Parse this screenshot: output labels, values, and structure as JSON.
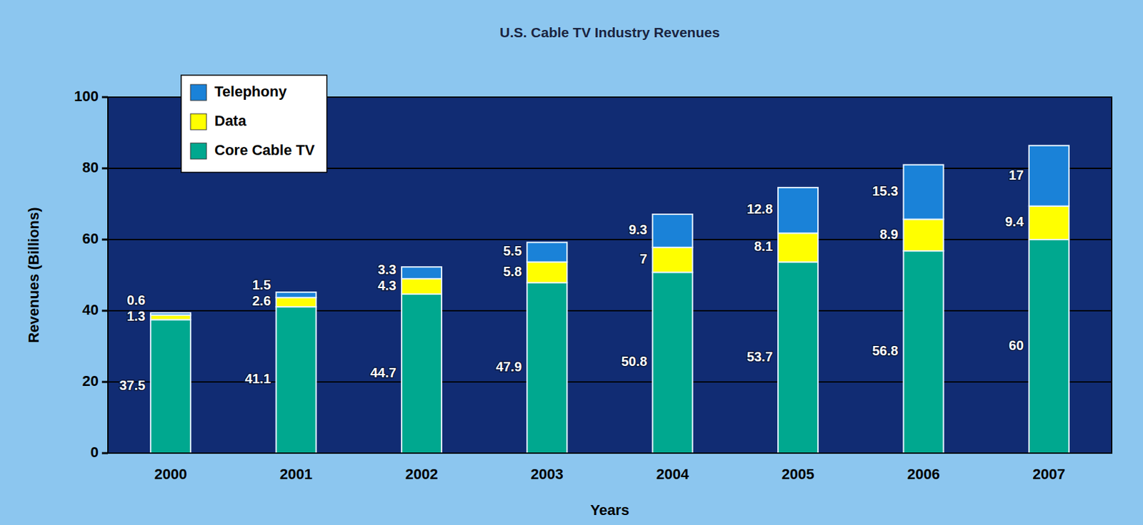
{
  "chart_data": {
    "type": "bar",
    "title": "U.S. Cable TV Industry Revenues",
    "x_label": "Years",
    "y_label": "Revenues (Billions)",
    "categories": [
      "2000",
      "2001",
      "2002",
      "2003",
      "2004",
      "2005",
      "2006",
      "2007"
    ],
    "series": [
      {
        "name": "Telephony",
        "color": "#1a82d8",
        "values": [
          0.6,
          1.5,
          3.3,
          5.5,
          9.3,
          12.8,
          15.3,
          17
        ]
      },
      {
        "name": "Data",
        "color": "#ffff00",
        "values": [
          1.3,
          2.6,
          4.3,
          5.8,
          7,
          8.1,
          8.9,
          9.4
        ]
      },
      {
        "name": "Core Cable TV",
        "color": "#00a88f",
        "values": [
          37.5,
          41.1,
          44.7,
          47.9,
          50.8,
          53.7,
          56.8,
          60
        ]
      }
    ],
    "ylim": [
      0,
      100
    ],
    "yticks": [
      0,
      20,
      40,
      60,
      80,
      100
    ],
    "grid": true,
    "stacked": true,
    "legend": "upper left",
    "data_labels": true
  }
}
